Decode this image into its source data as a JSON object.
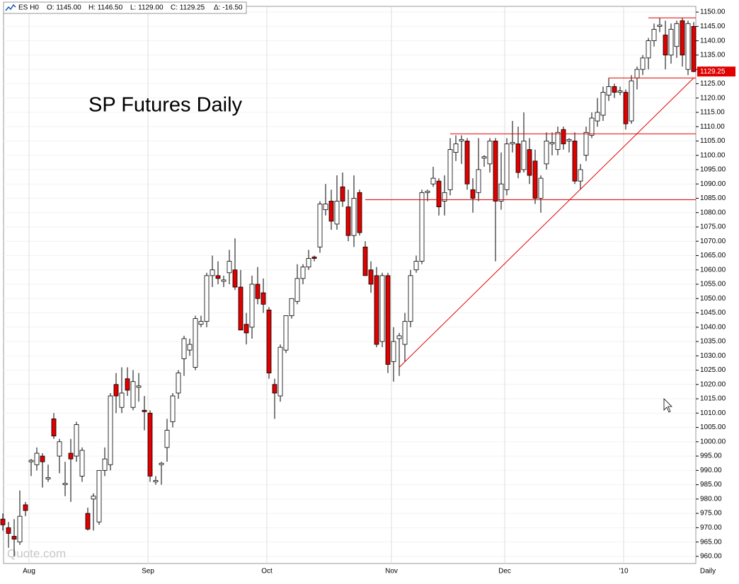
{
  "chart_data": {
    "type": "candlestick",
    "title": "SP Futures Daily",
    "header": [
      "ES H0",
      "O: 1145.00",
      "H: 1146.50",
      "L: 1129.00",
      "C: 1129.25",
      "Δ: -16.50"
    ],
    "watermark": "Quote.com",
    "interval": "Daily",
    "up_color": "#ffffff",
    "down_color": "#e00000",
    "line_color": "#e00000",
    "grid": true,
    "categories": [
      null,
      null,
      null,
      null,
      null,
      "Aug",
      null,
      null,
      null,
      null,
      null,
      null,
      null,
      null,
      null,
      null,
      null,
      null,
      null,
      null,
      null,
      null,
      null,
      null,
      null,
      null,
      "Sep",
      null,
      null,
      null,
      null,
      null,
      null,
      null,
      null,
      null,
      null,
      null,
      null,
      null,
      null,
      null,
      null,
      null,
      null,
      null,
      null,
      "Oct",
      null,
      null,
      null,
      null,
      null,
      null,
      null,
      null,
      null,
      null,
      null,
      null,
      null,
      null,
      null,
      null,
      null,
      null,
      null,
      null,
      null,
      "Nov",
      null,
      null,
      null,
      null,
      null,
      null,
      null,
      null,
      null,
      null,
      null,
      null,
      null,
      null,
      null,
      null,
      null,
      null,
      null,
      "Dec",
      null,
      null,
      null,
      null,
      null,
      null,
      null,
      null,
      null,
      null,
      null,
      null,
      null,
      null,
      null,
      null,
      null,
      null,
      null,
      null,
      "'10",
      null,
      null,
      null,
      null,
      null,
      null,
      null,
      null,
      null,
      null,
      null,
      null
    ],
    "open": [
      973,
      970,
      967,
      965,
      978,
      993,
      992,
      995,
      987,
      1008,
      995,
      985,
      996,
      995,
      988,
      975,
      980,
      972,
      990,
      992,
      1020,
      1012,
      1022,
      1012,
      1019,
      1011,
      1010,
      986,
      992,
      998,
      1007,
      1017,
      1029,
      1032,
      1026,
      1041,
      1042,
      1058,
      1058,
      1056,
      1059,
      1060,
      1054,
      1041,
      1040,
      1055,
      1052,
      1046,
      1020,
      1016,
      1032,
      1044,
      1049,
      1057,
      1061,
      1064.5,
      1068,
      1081,
      1084,
      1076,
      1089,
      1082,
      1072,
      1087,
      1068,
      1060,
      1058,
      1035,
      1058,
      1028,
      1036,
      1034,
      1042,
      1060,
      1063,
      1087,
      1090,
      1091,
      1084,
      1088,
      1101,
      1105,
      1105,
      1088,
      1087,
      1099,
      1097,
      1105,
      1084,
      1088,
      1104,
      1104,
      1095,
      1102,
      1098,
      1085,
      1097,
      1104,
      1102,
      1109,
      1105,
      1105,
      1091,
      1100,
      1107,
      1112,
      1114,
      1121,
      1124,
      1122,
      1122,
      1112,
      1127,
      1130,
      1134,
      1140,
      1145,
      1142,
      1135,
      1138,
      1147,
      1130,
      1145
    ],
    "high": [
      975,
      972,
      973,
      983,
      979,
      994,
      998,
      996,
      992,
      1010,
      1001,
      993,
      1001,
      1007,
      998,
      977,
      982,
      990,
      998,
      1017,
      1024,
      1026,
      1026,
      1025,
      1024,
      1016,
      1011,
      988,
      993,
      1008,
      1017,
      1025,
      1037,
      1036,
      1044,
      1044,
      1059,
      1065,
      1063,
      1058,
      1067,
      1071,
      1060,
      1045,
      1058,
      1061,
      1057,
      1047,
      1022,
      1034,
      1044,
      1050,
      1062,
      1062,
      1067,
      1065,
      1084,
      1090,
      1088,
      1093,
      1094,
      1088,
      1093,
      1088,
      1070,
      1063,
      1061,
      1059,
      1059,
      1040,
      1038,
      1045,
      1060,
      1065,
      1088,
      1088,
      1096,
      1092,
      1093,
      1106,
      1107,
      1107,
      1106,
      1092,
      1106,
      1100,
      1106,
      1106,
      1101,
      1106,
      1112,
      1110,
      1115,
      1106,
      1102,
      1093,
      1108,
      1108,
      1110,
      1110,
      1106,
      1108,
      1097,
      1110,
      1115,
      1120,
      1124,
      1127,
      1125,
      1124,
      1123,
      1128,
      1131,
      1135,
      1141,
      1146,
      1148,
      1147,
      1146,
      1147,
      1148,
      1147,
      1146.5
    ],
    "low": [
      969,
      963,
      960,
      964,
      974,
      988,
      990,
      984,
      986,
      1001,
      989,
      981,
      979,
      993,
      986,
      969,
      969,
      971,
      988,
      990,
      1010,
      1010,
      1016,
      1011,
      1014,
      1004,
      986,
      985,
      985,
      993,
      1005,
      1015,
      1023,
      1030,
      1025,
      1040,
      1040,
      1054,
      1055,
      1054,
      1055,
      1053,
      1039,
      1034,
      1036,
      1048,
      1045,
      1022,
      1008,
      1014,
      1031,
      1043,
      1048,
      1055,
      1060,
      1063,
      1066,
      1079,
      1074,
      1074,
      1082,
      1070,
      1068,
      1072,
      1058,
      1052,
      1033,
      1033,
      1024,
      1021,
      1023,
      1028,
      1040,
      1059,
      1062,
      1084,
      1089,
      1079,
      1079,
      1086,
      1098,
      1097,
      1088,
      1080,
      1084,
      1096,
      1094,
      1063,
      1081,
      1086,
      1101,
      1092,
      1094,
      1090,
      1083,
      1080,
      1095,
      1100,
      1100,
      1102,
      1101,
      1090,
      1088,
      1098,
      1106,
      1110,
      1112,
      1119,
      1120,
      1121,
      1109,
      1111,
      1123,
      1128,
      1130,
      1138,
      1143,
      1130,
      1132,
      1134,
      1131,
      1128,
      1129
    ],
    "close": [
      971,
      968,
      966,
      974,
      976,
      993.5,
      996,
      993,
      987.5,
      1002,
      1000,
      985.5,
      994,
      1006,
      997,
      969.5,
      981,
      990,
      994,
      1016,
      1016,
      1017,
      1018,
      1021,
      1019.5,
      1010.5,
      988,
      986.5,
      992.5,
      1004,
      1016,
      1024,
      1036,
      1034,
      1043,
      1042,
      1058,
      1060,
      1057,
      1056.5,
      1063,
      1054,
      1039,
      1038,
      1055,
      1050,
      1048,
      1024,
      1017,
      1033,
      1044,
      1050,
      1057,
      1061,
      1064,
      1064,
      1083,
      1083,
      1077,
      1084,
      1084,
      1072,
      1085,
      1073,
      1058,
      1055,
      1034,
      1058,
      1027,
      1035,
      1037,
      1042,
      1058,
      1063,
      1087,
      1087.5,
      1092,
      1082,
      1087,
      1102,
      1104,
      1105.5,
      1090,
      1085,
      1095,
      1099.5,
      1105,
      1084,
      1090,
      1104,
      1104.5,
      1094,
      1105,
      1093,
      1085,
      1092,
      1105,
      1104.5,
      1108,
      1104,
      1105.5,
      1091,
      1095,
      1108,
      1113,
      1115,
      1122,
      1124,
      1122,
      1122.5,
      1111,
      1126,
      1130,
      1134,
      1140,
      1144,
      1145.5,
      1135,
      1144,
      1146,
      1135,
      1146,
      1129.25
    ],
    "levels": [
      {
        "value": 1148,
        "start": 114
      },
      {
        "value": 1127,
        "start": 107
      },
      {
        "value": 1107.5,
        "start": 79
      },
      {
        "value": 1084.5,
        "start": 64
      }
    ],
    "trendline": {
      "start": [
        70,
        1026
      ],
      "end": [
        122,
        1127
      ]
    },
    "ylim": [
      957.5,
      1152
    ],
    "yticks": [
      {
        "value": 960,
        "label": "960.00"
      },
      {
        "value": 965,
        "label": "965.00"
      },
      {
        "value": 970,
        "label": "970.00"
      },
      {
        "value": 975,
        "label": "975.00"
      },
      {
        "value": 980,
        "label": "980.00"
      },
      {
        "value": 985,
        "label": "985.00"
      },
      {
        "value": 990,
        "label": "990.00"
      },
      {
        "value": 995,
        "label": "995.00"
      },
      {
        "value": 1000,
        "label": "1000.00"
      },
      {
        "value": 1005,
        "label": "1005.00"
      },
      {
        "value": 1010,
        "label": "1010.00"
      },
      {
        "value": 1015,
        "label": "1015.00"
      },
      {
        "value": 1020,
        "label": "1020.00"
      },
      {
        "value": 1025,
        "label": "1025.00"
      },
      {
        "value": 1030,
        "label": "1030.00"
      },
      {
        "value": 1035,
        "label": "1035.00"
      },
      {
        "value": 1040,
        "label": "1040.00"
      },
      {
        "value": 1045,
        "label": "1045.00"
      },
      {
        "value": 1050,
        "label": "1050.00"
      },
      {
        "value": 1055,
        "label": "1055.00"
      },
      {
        "value": 1060,
        "label": "1060.00"
      },
      {
        "value": 1065,
        "label": "1065.00"
      },
      {
        "value": 1070,
        "label": "1070.00"
      },
      {
        "value": 1075,
        "label": "1075.00"
      },
      {
        "value": 1080,
        "label": "1080.00"
      },
      {
        "value": 1085,
        "label": "1085.00"
      },
      {
        "value": 1090,
        "label": "1090.00"
      },
      {
        "value": 1095,
        "label": "1095.00"
      },
      {
        "value": 1100,
        "label": "1100.00"
      },
      {
        "value": 1105,
        "label": "1105.00"
      },
      {
        "value": 1110,
        "label": "1110.00"
      },
      {
        "value": 1115,
        "label": "1115.00"
      },
      {
        "value": 1120,
        "label": "1120.00"
      },
      {
        "value": 1125,
        "label": "1125.00"
      },
      {
        "value": 1130,
        "label": "1130.00"
      },
      {
        "value": 1135,
        "label": "1135.00"
      },
      {
        "value": 1140,
        "label": "1140.00"
      },
      {
        "value": 1145,
        "label": "1145.00"
      },
      {
        "value": 1150,
        "label": "1150.00"
      }
    ]
  }
}
